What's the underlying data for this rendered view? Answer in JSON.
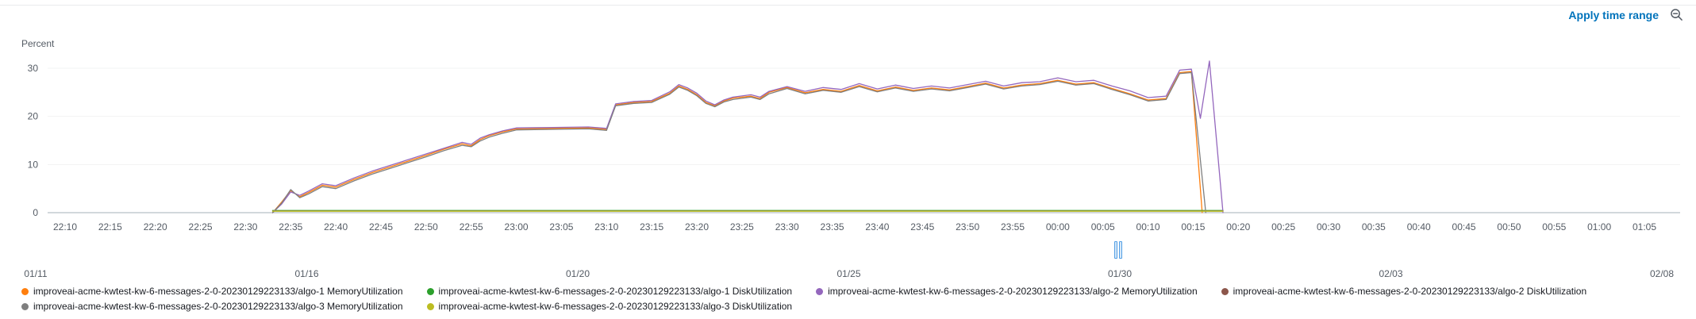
{
  "header": {
    "apply_time_range_label": "Apply time range"
  },
  "chart_data": {
    "type": "line",
    "title": "",
    "ylabel": "Percent",
    "ylim": [
      0,
      33
    ],
    "y_ticks": [
      0,
      10,
      20,
      30
    ],
    "grid": false,
    "legend_position": "bottom",
    "x_domain_minutes": [
      0,
      175
    ],
    "x_tick_interval_minutes": 5,
    "x_tick_labels": [
      "22:10",
      "22:15",
      "22:20",
      "22:25",
      "22:30",
      "22:35",
      "22:40",
      "22:45",
      "22:50",
      "22:55",
      "23:00",
      "23:05",
      "23:10",
      "23:15",
      "23:20",
      "23:25",
      "23:30",
      "23:35",
      "23:40",
      "23:45",
      "23:50",
      "23:55",
      "00:00",
      "00:05",
      "00:10",
      "00:15",
      "00:20",
      "00:25",
      "00:30",
      "00:35",
      "00:40",
      "00:45",
      "00:50",
      "00:55",
      "01:00",
      "01:05"
    ],
    "date_axis_labels": [
      "01/11",
      "01/16",
      "01/20",
      "01/25",
      "01/30",
      "02/03",
      "02/08"
    ],
    "series": [
      {
        "name": "improveai-acme-kwtest-kw-6-messages-2-0-20230129223133/algo-1 MemoryUtilization",
        "color": "#ff7f0e",
        "points": [
          [
            23,
            0
          ],
          [
            24,
            2.2
          ],
          [
            25,
            4.6
          ],
          [
            26,
            3.3
          ],
          [
            27,
            4.2
          ],
          [
            28.5,
            5.7
          ],
          [
            30,
            5.3
          ],
          [
            32,
            6.9
          ],
          [
            34,
            8.3
          ],
          [
            36,
            9.5
          ],
          [
            38,
            10.7
          ],
          [
            40,
            11.9
          ],
          [
            42,
            13.2
          ],
          [
            44,
            14.3
          ],
          [
            45,
            13.9
          ],
          [
            46,
            15.2
          ],
          [
            47,
            16
          ],
          [
            48.5,
            16.8
          ],
          [
            50,
            17.4
          ],
          [
            54,
            17.5
          ],
          [
            58,
            17.6
          ],
          [
            60,
            17.3
          ],
          [
            61,
            22.4
          ],
          [
            63,
            22.9
          ],
          [
            65,
            23.1
          ],
          [
            67,
            24.8
          ],
          [
            68,
            26.3
          ],
          [
            69,
            25.6
          ],
          [
            70,
            24.5
          ],
          [
            71,
            22.9
          ],
          [
            72,
            22.2
          ],
          [
            73,
            23.2
          ],
          [
            74,
            23.8
          ],
          [
            76,
            24.2
          ],
          [
            77,
            23.7
          ],
          [
            78,
            25
          ],
          [
            80,
            26
          ],
          [
            82,
            24.9
          ],
          [
            84,
            25.6
          ],
          [
            86,
            25.2
          ],
          [
            88,
            26.4
          ],
          [
            90,
            25.3
          ],
          [
            92,
            26.1
          ],
          [
            94,
            25.4
          ],
          [
            96,
            25.9
          ],
          [
            98,
            25.5
          ],
          [
            100,
            26.2
          ],
          [
            102,
            26.9
          ],
          [
            104,
            25.9
          ],
          [
            106,
            26.5
          ],
          [
            108,
            26.8
          ],
          [
            110,
            27.5
          ],
          [
            112,
            26.7
          ],
          [
            114,
            27
          ],
          [
            116,
            25.8
          ],
          [
            118,
            24.7
          ],
          [
            120,
            23.4
          ],
          [
            122,
            23.7
          ],
          [
            123.5,
            29.1
          ],
          [
            124.8,
            29.3
          ],
          [
            126,
            0
          ]
        ]
      },
      {
        "name": "improveai-acme-kwtest-kw-6-messages-2-0-20230129223133/algo-1 DiskUtilization",
        "color": "#2ca02c",
        "points": [
          [
            23,
            0.45
          ],
          [
            128.3,
            0.45
          ]
        ]
      },
      {
        "name": "improveai-acme-kwtest-kw-6-messages-2-0-20230129223133/algo-2 MemoryUtilization",
        "color": "#9467bd",
        "points": [
          [
            23,
            0
          ],
          [
            24,
            1.8
          ],
          [
            25,
            4.3
          ],
          [
            26,
            3.6
          ],
          [
            27,
            4.5
          ],
          [
            28.5,
            6
          ],
          [
            30,
            5.6
          ],
          [
            32,
            7.2
          ],
          [
            34,
            8.6
          ],
          [
            36,
            9.8
          ],
          [
            38,
            11
          ],
          [
            40,
            12.2
          ],
          [
            42,
            13.4
          ],
          [
            44,
            14.6
          ],
          [
            45,
            14.2
          ],
          [
            46,
            15.5
          ],
          [
            47,
            16.2
          ],
          [
            48.5,
            17
          ],
          [
            50,
            17.6
          ],
          [
            54,
            17.7
          ],
          [
            58,
            17.8
          ],
          [
            60,
            17.5
          ],
          [
            61,
            22.6
          ],
          [
            63,
            23.1
          ],
          [
            65,
            23.3
          ],
          [
            67,
            25.1
          ],
          [
            68,
            26.6
          ],
          [
            69,
            25.9
          ],
          [
            70,
            24.8
          ],
          [
            71,
            23.2
          ],
          [
            72,
            22.4
          ],
          [
            73,
            23.4
          ],
          [
            74,
            24
          ],
          [
            76,
            24.5
          ],
          [
            77,
            24
          ],
          [
            78,
            25.2
          ],
          [
            80,
            26.2
          ],
          [
            82,
            25.2
          ],
          [
            84,
            26
          ],
          [
            86,
            25.6
          ],
          [
            88,
            26.8
          ],
          [
            90,
            25.7
          ],
          [
            92,
            26.5
          ],
          [
            94,
            25.8
          ],
          [
            96,
            26.3
          ],
          [
            98,
            25.9
          ],
          [
            100,
            26.6
          ],
          [
            102,
            27.3
          ],
          [
            104,
            26.3
          ],
          [
            106,
            27
          ],
          [
            108,
            27.2
          ],
          [
            110,
            28
          ],
          [
            112,
            27.2
          ],
          [
            114,
            27.5
          ],
          [
            116,
            26.3
          ],
          [
            118,
            25.3
          ],
          [
            120,
            23.9
          ],
          [
            122,
            24.2
          ],
          [
            123.5,
            29.6
          ],
          [
            124.8,
            29.8
          ],
          [
            125.8,
            19.6
          ],
          [
            126.8,
            31.5
          ],
          [
            128.3,
            0
          ]
        ]
      },
      {
        "name": "improveai-acme-kwtest-kw-6-messages-2-0-20230129223133/algo-2 DiskUtilization",
        "color": "#8c564b",
        "points": [
          [
            23,
            0.35
          ],
          [
            128.3,
            0.35
          ]
        ]
      },
      {
        "name": "improveai-acme-kwtest-kw-6-messages-2-0-20230129223133/algo-3 MemoryUtilization",
        "color": "#7f7f7f",
        "points": [
          [
            23,
            0
          ],
          [
            24,
            2
          ],
          [
            25,
            4.8
          ],
          [
            26,
            3.1
          ],
          [
            27,
            3.9
          ],
          [
            28.5,
            5.4
          ],
          [
            30,
            5
          ],
          [
            32,
            6.6
          ],
          [
            34,
            8
          ],
          [
            36,
            9.2
          ],
          [
            38,
            10.4
          ],
          [
            40,
            11.6
          ],
          [
            42,
            12.9
          ],
          [
            44,
            14
          ],
          [
            45,
            13.7
          ],
          [
            46,
            14.9
          ],
          [
            47,
            15.7
          ],
          [
            48.5,
            16.5
          ],
          [
            50,
            17.2
          ],
          [
            54,
            17.3
          ],
          [
            58,
            17.4
          ],
          [
            60,
            17.1
          ],
          [
            61,
            22.2
          ],
          [
            63,
            22.7
          ],
          [
            65,
            22.9
          ],
          [
            67,
            24.6
          ],
          [
            68,
            26.1
          ],
          [
            69,
            25.4
          ],
          [
            70,
            24.3
          ],
          [
            71,
            22.7
          ],
          [
            72,
            22
          ],
          [
            73,
            23
          ],
          [
            74,
            23.5
          ],
          [
            76,
            24
          ],
          [
            77,
            23.5
          ],
          [
            78,
            24.7
          ],
          [
            80,
            25.8
          ],
          [
            82,
            24.7
          ],
          [
            84,
            25.4
          ],
          [
            86,
            25
          ],
          [
            88,
            26.2
          ],
          [
            90,
            25.1
          ],
          [
            92,
            25.9
          ],
          [
            94,
            25.2
          ],
          [
            96,
            25.7
          ],
          [
            98,
            25.3
          ],
          [
            100,
            26
          ],
          [
            102,
            26.7
          ],
          [
            104,
            25.7
          ],
          [
            106,
            26.3
          ],
          [
            108,
            26.6
          ],
          [
            110,
            27.3
          ],
          [
            112,
            26.5
          ],
          [
            114,
            26.8
          ],
          [
            116,
            25.6
          ],
          [
            118,
            24.5
          ],
          [
            120,
            23.2
          ],
          [
            122,
            23.5
          ],
          [
            123.5,
            28.9
          ],
          [
            124.8,
            29.1
          ],
          [
            126.4,
            0
          ]
        ]
      },
      {
        "name": "improveai-acme-kwtest-kw-6-messages-2-0-20230129223133/algo-3 DiskUtilization",
        "color": "#bcbd22",
        "points": [
          [
            23,
            0.3
          ],
          [
            128.3,
            0.3
          ]
        ]
      }
    ]
  },
  "legend": {
    "rows": [
      [
        0,
        1,
        2,
        3
      ],
      [
        4,
        5
      ]
    ]
  }
}
